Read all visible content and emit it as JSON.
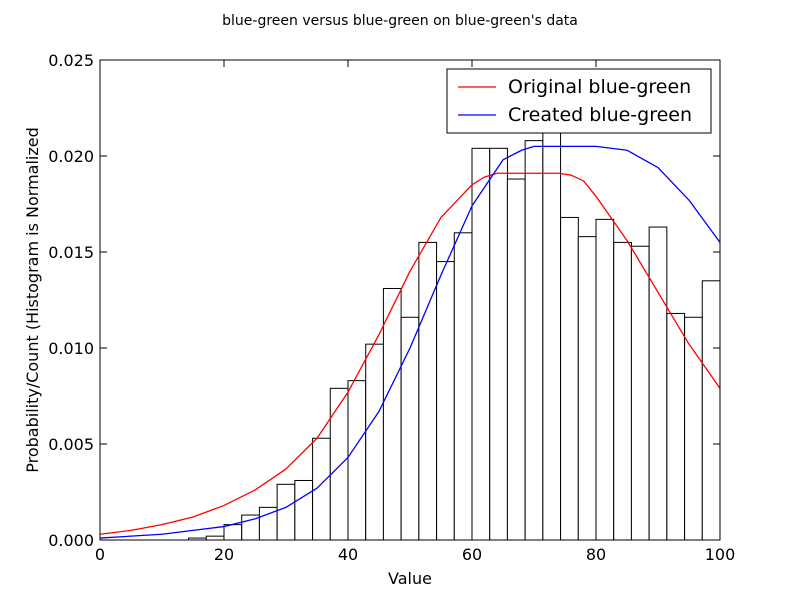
{
  "chart_data": {
    "type": "bar",
    "title": "blue-green versus blue-green on blue-green's data",
    "xlabel": "Value",
    "ylabel": "Probability/Count (Histogram is Normalized",
    "xlim": [
      0,
      100
    ],
    "ylim": [
      0,
      0.025
    ],
    "x_ticks": [
      "0",
      "20",
      "40",
      "60",
      "80",
      "100"
    ],
    "y_ticks": [
      "0.000",
      "0.005",
      "0.010",
      "0.015",
      "0.020",
      "0.025"
    ],
    "grid": false,
    "legend_position": "top-right",
    "histogram": {
      "bin_width": 2.857,
      "bins": [
        {
          "start": 14.29,
          "value": 0.0001
        },
        {
          "start": 17.14,
          "value": 0.0002
        },
        {
          "start": 20.0,
          "value": 0.0008
        },
        {
          "start": 22.86,
          "value": 0.0013
        },
        {
          "start": 25.71,
          "value": 0.0017
        },
        {
          "start": 28.57,
          "value": 0.0029
        },
        {
          "start": 31.43,
          "value": 0.0031
        },
        {
          "start": 34.29,
          "value": 0.0053
        },
        {
          "start": 37.14,
          "value": 0.0079
        },
        {
          "start": 40.0,
          "value": 0.0083
        },
        {
          "start": 42.86,
          "value": 0.0102
        },
        {
          "start": 45.71,
          "value": 0.0131
        },
        {
          "start": 48.57,
          "value": 0.0116
        },
        {
          "start": 51.43,
          "value": 0.0155
        },
        {
          "start": 54.29,
          "value": 0.0145
        },
        {
          "start": 57.14,
          "value": 0.016
        },
        {
          "start": 60.0,
          "value": 0.0204
        },
        {
          "start": 62.86,
          "value": 0.0204
        },
        {
          "start": 65.71,
          "value": 0.0188
        },
        {
          "start": 68.57,
          "value": 0.0208
        },
        {
          "start": 71.43,
          "value": 0.0212
        },
        {
          "start": 74.29,
          "value": 0.0168
        },
        {
          "start": 77.14,
          "value": 0.0158
        },
        {
          "start": 80.0,
          "value": 0.0167
        },
        {
          "start": 82.86,
          "value": 0.0155
        },
        {
          "start": 85.71,
          "value": 0.0153
        },
        {
          "start": 88.57,
          "value": 0.0163
        },
        {
          "start": 91.43,
          "value": 0.0118
        },
        {
          "start": 94.29,
          "value": 0.0116
        },
        {
          "start": 97.14,
          "value": 0.0135
        }
      ]
    },
    "series": [
      {
        "name": "Original blue-green",
        "type": "line",
        "color": "#ff0000",
        "x": [
          0,
          5,
          10,
          15,
          20,
          25,
          30,
          35,
          40,
          45,
          50,
          55,
          60,
          62,
          64,
          66,
          68,
          70,
          72,
          74,
          76,
          78,
          80,
          85,
          90,
          95,
          100
        ],
        "y": [
          0.0003,
          0.0005,
          0.0008,
          0.0012,
          0.0018,
          0.0026,
          0.0037,
          0.0053,
          0.0077,
          0.0107,
          0.014,
          0.0168,
          0.0185,
          0.0189,
          0.0191,
          0.0191,
          0.0191,
          0.0191,
          0.0191,
          0.0191,
          0.019,
          0.0187,
          0.0179,
          0.0156,
          0.0129,
          0.0102,
          0.0079
        ]
      },
      {
        "name": "Created blue-green",
        "type": "line",
        "color": "#0000ff",
        "x": [
          0,
          5,
          10,
          15,
          20,
          25,
          30,
          35,
          40,
          45,
          50,
          55,
          60,
          65,
          68,
          70,
          72,
          75,
          78,
          80,
          85,
          90,
          95,
          100
        ],
        "y": [
          0.0001,
          0.0002,
          0.0003,
          0.0005,
          0.0007,
          0.0011,
          0.0017,
          0.0027,
          0.0043,
          0.0067,
          0.01,
          0.0138,
          0.0174,
          0.0198,
          0.0203,
          0.0205,
          0.0205,
          0.0205,
          0.0205,
          0.0205,
          0.0203,
          0.0194,
          0.0177,
          0.0155
        ]
      }
    ]
  }
}
